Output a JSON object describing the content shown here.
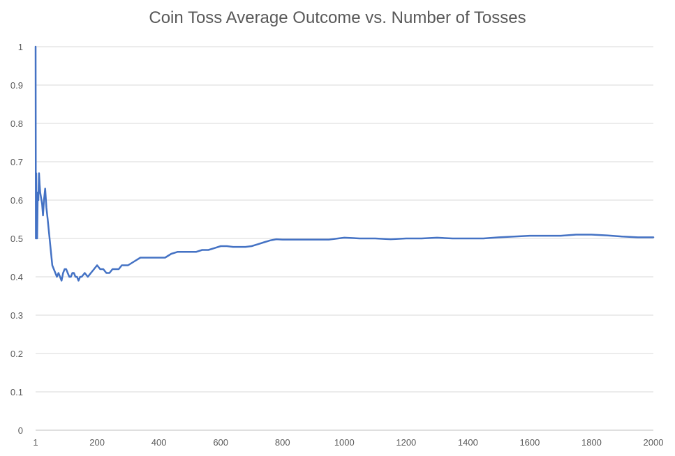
{
  "chart_data": {
    "type": "line",
    "title": "Coin Toss Average Outcome vs. Number of Tosses",
    "xlabel": "",
    "ylabel": "",
    "xlim": [
      1,
      2000
    ],
    "ylim": [
      0,
      1
    ],
    "x_ticks": [
      1,
      200,
      400,
      600,
      800,
      1000,
      1200,
      1400,
      1600,
      1800,
      2000
    ],
    "y_ticks": [
      0,
      0.1,
      0.2,
      0.3,
      0.4,
      0.5,
      0.6,
      0.7,
      0.8,
      0.9,
      1
    ],
    "y_tick_labels": [
      "0",
      "0.1",
      "0.2",
      "0.3",
      "0.4",
      "0.5",
      "0.6",
      "0.7",
      "0.8",
      "0.9",
      "1"
    ],
    "x_tick_labels": [
      "1",
      "200",
      "400",
      "600",
      "800",
      "1000",
      "1200",
      "1400",
      "1600",
      "1800",
      "2000"
    ],
    "grid": true,
    "legend": "none",
    "series": [
      {
        "color": "#4472c4",
        "x": [
          1,
          2,
          3,
          4,
          5,
          6,
          8,
          10,
          12,
          14,
          16,
          18,
          20,
          22,
          25,
          28,
          32,
          36,
          40,
          45,
          50,
          55,
          60,
          65,
          70,
          75,
          80,
          85,
          90,
          95,
          100,
          105,
          110,
          115,
          120,
          125,
          130,
          135,
          140,
          145,
          150,
          160,
          170,
          180,
          190,
          200,
          210,
          220,
          230,
          240,
          250,
          260,
          270,
          280,
          290,
          300,
          320,
          340,
          360,
          380,
          400,
          420,
          440,
          460,
          480,
          500,
          520,
          540,
          560,
          580,
          600,
          620,
          640,
          660,
          680,
          700,
          720,
          740,
          760,
          780,
          800,
          850,
          900,
          950,
          1000,
          1050,
          1100,
          1150,
          1200,
          1250,
          1300,
          1350,
          1400,
          1450,
          1500,
          1550,
          1600,
          1650,
          1700,
          1750,
          1800,
          1850,
          1900,
          1950,
          2000
        ],
        "values": [
          1,
          0.5,
          0.67,
          0.5,
          0.6,
          0.5,
          0.62,
          0.6,
          0.67,
          0.64,
          0.62,
          0.61,
          0.6,
          0.59,
          0.56,
          0.6,
          0.63,
          0.58,
          0.55,
          0.51,
          0.47,
          0.43,
          0.42,
          0.41,
          0.4,
          0.41,
          0.4,
          0.39,
          0.41,
          0.42,
          0.42,
          0.41,
          0.4,
          0.4,
          0.41,
          0.41,
          0.4,
          0.4,
          0.39,
          0.4,
          0.4,
          0.41,
          0.4,
          0.41,
          0.42,
          0.43,
          0.42,
          0.42,
          0.41,
          0.41,
          0.42,
          0.42,
          0.42,
          0.43,
          0.43,
          0.43,
          0.44,
          0.45,
          0.45,
          0.45,
          0.45,
          0.45,
          0.46,
          0.465,
          0.465,
          0.465,
          0.465,
          0.47,
          0.47,
          0.475,
          0.48,
          0.48,
          0.478,
          0.478,
          0.478,
          0.48,
          0.485,
          0.49,
          0.495,
          0.498,
          0.497,
          0.497,
          0.497,
          0.497,
          0.502,
          0.5,
          0.5,
          0.498,
          0.5,
          0.5,
          0.502,
          0.5,
          0.5,
          0.5,
          0.503,
          0.505,
          0.507,
          0.507,
          0.507,
          0.51,
          0.51,
          0.508,
          0.505,
          0.503,
          0.503
        ]
      }
    ]
  }
}
